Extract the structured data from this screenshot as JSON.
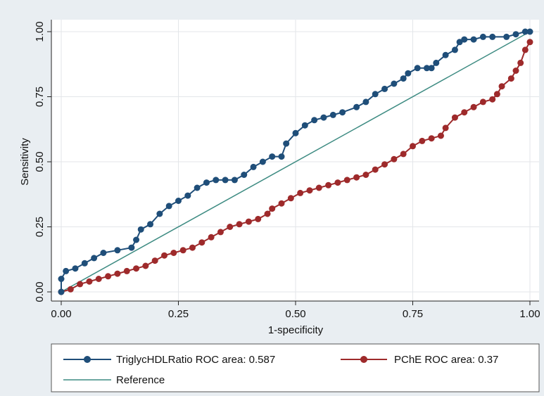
{
  "chart_data": {
    "type": "line",
    "title": "",
    "xlabel": "1-specificity",
    "ylabel": "Sensitivity",
    "xlim": [
      0,
      1
    ],
    "ylim": [
      0,
      1
    ],
    "grid": true,
    "legend_position": "bottom",
    "x_ticks": [
      "0.00",
      "0.25",
      "0.50",
      "0.75",
      "1.00"
    ],
    "y_ticks": [
      "0.00",
      "0.25",
      "0.50",
      "0.75",
      "1.00"
    ],
    "series": [
      {
        "name": "TriglycHDLRatio ROC area: 0.587",
        "color": "#1f4e79",
        "marker": "circle",
        "x": [
          0.0,
          0.0,
          0.01,
          0.03,
          0.05,
          0.07,
          0.09,
          0.12,
          0.15,
          0.16,
          0.17,
          0.19,
          0.21,
          0.23,
          0.25,
          0.27,
          0.29,
          0.31,
          0.33,
          0.35,
          0.37,
          0.39,
          0.41,
          0.43,
          0.45,
          0.47,
          0.48,
          0.5,
          0.52,
          0.54,
          0.56,
          0.58,
          0.6,
          0.63,
          0.65,
          0.67,
          0.69,
          0.71,
          0.73,
          0.74,
          0.76,
          0.78,
          0.79,
          0.8,
          0.82,
          0.84,
          0.85,
          0.86,
          0.88,
          0.9,
          0.92,
          0.95,
          0.97,
          0.99,
          1.0
        ],
        "y": [
          0.0,
          0.05,
          0.08,
          0.09,
          0.11,
          0.13,
          0.15,
          0.16,
          0.17,
          0.2,
          0.24,
          0.26,
          0.3,
          0.33,
          0.35,
          0.37,
          0.4,
          0.42,
          0.43,
          0.43,
          0.43,
          0.45,
          0.48,
          0.5,
          0.52,
          0.52,
          0.57,
          0.61,
          0.64,
          0.66,
          0.67,
          0.68,
          0.69,
          0.71,
          0.73,
          0.76,
          0.78,
          0.8,
          0.82,
          0.84,
          0.86,
          0.86,
          0.86,
          0.88,
          0.91,
          0.93,
          0.96,
          0.97,
          0.97,
          0.98,
          0.98,
          0.98,
          0.99,
          1.0,
          1.0
        ]
      },
      {
        "name": "PChE ROC area: 0.37",
        "color": "#9e2a2b",
        "marker": "circle",
        "x": [
          0.0,
          0.02,
          0.04,
          0.06,
          0.08,
          0.1,
          0.12,
          0.14,
          0.16,
          0.18,
          0.2,
          0.22,
          0.24,
          0.26,
          0.28,
          0.3,
          0.32,
          0.34,
          0.36,
          0.38,
          0.4,
          0.42,
          0.44,
          0.45,
          0.47,
          0.49,
          0.51,
          0.53,
          0.55,
          0.57,
          0.59,
          0.61,
          0.63,
          0.65,
          0.67,
          0.69,
          0.71,
          0.73,
          0.75,
          0.77,
          0.79,
          0.81,
          0.82,
          0.84,
          0.86,
          0.88,
          0.9,
          0.92,
          0.93,
          0.94,
          0.96,
          0.97,
          0.98,
          0.99,
          1.0
        ],
        "y": [
          0.0,
          0.01,
          0.03,
          0.04,
          0.05,
          0.06,
          0.07,
          0.08,
          0.09,
          0.1,
          0.12,
          0.14,
          0.15,
          0.16,
          0.17,
          0.19,
          0.21,
          0.23,
          0.25,
          0.26,
          0.27,
          0.28,
          0.3,
          0.32,
          0.34,
          0.36,
          0.38,
          0.39,
          0.4,
          0.41,
          0.42,
          0.43,
          0.44,
          0.45,
          0.47,
          0.49,
          0.51,
          0.53,
          0.56,
          0.58,
          0.59,
          0.6,
          0.63,
          0.67,
          0.69,
          0.71,
          0.73,
          0.74,
          0.76,
          0.79,
          0.82,
          0.85,
          0.88,
          0.93,
          0.96
        ]
      },
      {
        "name": "Reference",
        "color": "#3d8b82",
        "marker": "none",
        "x": [
          0,
          1
        ],
        "y": [
          0,
          1
        ]
      }
    ]
  }
}
